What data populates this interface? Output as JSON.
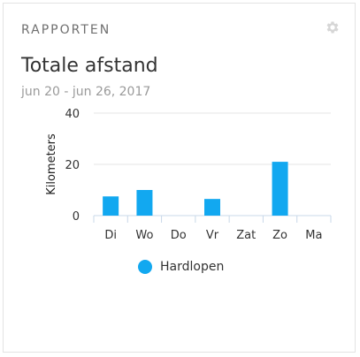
{
  "card": {
    "section_title": "RAPPORTEN",
    "title": "Totale afstand",
    "date_range": "jun 20 - jun 26, 2017"
  },
  "icons": {
    "settings": "gear-icon"
  },
  "colors": {
    "series": "#12a8f0",
    "grid": "#e6e6e6",
    "axis": "#c8d8e8"
  },
  "chart_data": {
    "type": "bar",
    "categories": [
      "Di",
      "Wo",
      "Do",
      "Vr",
      "Zat",
      "Zo",
      "Ma"
    ],
    "series": [
      {
        "name": "Hardlopen",
        "values": [
          7.5,
          10,
          0,
          6.5,
          0,
          21,
          0
        ]
      }
    ],
    "ylabel": "Kilometers",
    "xlabel": "",
    "ylim": [
      0,
      40
    ],
    "yticks": [
      "0",
      "20",
      "40"
    ],
    "grid": true,
    "legend": "bottom"
  }
}
